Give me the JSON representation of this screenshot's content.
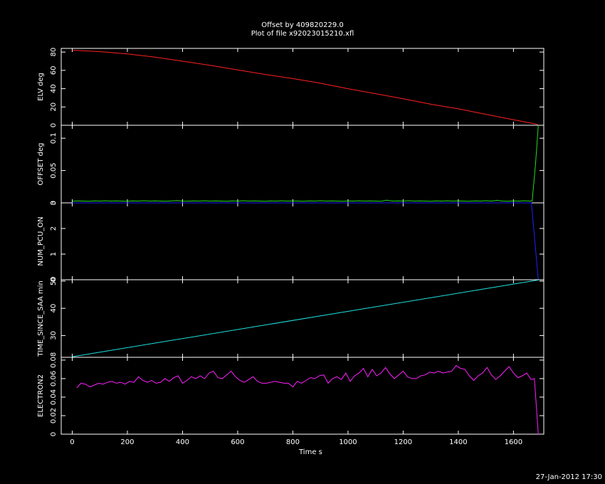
{
  "title": "Offset by 409820229.0",
  "subtitle": "Plot of file x92023015210.xfl",
  "footer_timestamp": "27-Jan-2012 17:30",
  "colors": {
    "background": "#000000",
    "frame": "#ffffff",
    "elv": "#ff2020",
    "offset": "#20e020",
    "num_pcu_on": "#2020ff",
    "time_since_saa": "#20e0e0",
    "electron2": "#ff20ff"
  },
  "chart_data": {
    "type": "line",
    "x_axis": {
      "label": "Time  s",
      "range": [
        -40,
        1710
      ],
      "ticks": [
        0,
        200,
        400,
        600,
        800,
        1000,
        1200,
        1400,
        1600
      ],
      "tick_labels": [
        "0",
        "200",
        "400",
        "600",
        "800",
        "1000",
        "1200",
        "1400",
        "1600"
      ]
    },
    "panels": [
      {
        "id": "elv",
        "ylabel": "ELV  deg",
        "ylim": [
          0,
          84
        ],
        "ticks": [
          0,
          20,
          40,
          60,
          80
        ],
        "tick_labels": [
          "0",
          "20",
          "40",
          "60",
          "80"
        ],
        "series": {
          "x": [
            0,
            100,
            200,
            300,
            400,
            500,
            600,
            700,
            800,
            900,
            1000,
            1100,
            1200,
            1300,
            1400,
            1500,
            1600,
            1680,
            1690
          ],
          "y": [
            82,
            80.5,
            78,
            74.5,
            70,
            65.5,
            60.5,
            55.5,
            51,
            46,
            40,
            34.5,
            29,
            23,
            18,
            12,
            6,
            1.5,
            0
          ]
        }
      },
      {
        "id": "offset",
        "ylabel": "OFFSET  deg",
        "ylim": [
          0,
          0.12
        ],
        "ticks": [
          0,
          0.05,
          0.1
        ],
        "tick_labels": [
          "0",
          "0.05",
          "0.1"
        ],
        "series": {
          "x": [
            0,
            20,
            40,
            60,
            80,
            100,
            120,
            140,
            160,
            180,
            200,
            220,
            240,
            260,
            280,
            300,
            320,
            340,
            360,
            380,
            400,
            420,
            440,
            460,
            480,
            500,
            520,
            540,
            560,
            580,
            600,
            620,
            640,
            660,
            680,
            700,
            720,
            740,
            760,
            780,
            800,
            820,
            840,
            860,
            880,
            900,
            920,
            940,
            960,
            980,
            1000,
            1020,
            1040,
            1060,
            1080,
            1100,
            1120,
            1140,
            1160,
            1180,
            1200,
            1220,
            1240,
            1260,
            1280,
            1300,
            1320,
            1340,
            1360,
            1380,
            1400,
            1420,
            1440,
            1460,
            1480,
            1500,
            1520,
            1540,
            1560,
            1580,
            1600,
            1620,
            1640,
            1660,
            1668,
            1680,
            1690
          ],
          "y": [
            0.0025,
            0.003,
            0.0028,
            0.0025,
            0.003,
            0.0028,
            0.0032,
            0.0027,
            0.003,
            0.0028,
            0.0025,
            0.003,
            0.0028,
            0.0033,
            0.0027,
            0.003,
            0.0028,
            0.0025,
            0.003,
            0.0035,
            0.0028,
            0.0026,
            0.003,
            0.0028,
            0.0032,
            0.0027,
            0.003,
            0.0028,
            0.0025,
            0.003,
            0.0028,
            0.0033,
            0.0027,
            0.003,
            0.0028,
            0.0025,
            0.003,
            0.0028,
            0.0032,
            0.0027,
            0.003,
            0.0028,
            0.0025,
            0.003,
            0.0028,
            0.0033,
            0.0027,
            0.003,
            0.0028,
            0.0025,
            0.003,
            0.0028,
            0.0032,
            0.0027,
            0.003,
            0.0028,
            0.0025,
            0.0042,
            0.0028,
            0.003,
            0.0028,
            0.0033,
            0.0027,
            0.003,
            0.0028,
            0.0025,
            0.003,
            0.0028,
            0.0032,
            0.0027,
            0.003,
            0.0028,
            0.0025,
            0.003,
            0.0028,
            0.0033,
            0.0027,
            0.0038,
            0.0028,
            0.0025,
            0.003,
            0.0028,
            0.0032,
            0.0027,
            0.003,
            0.06,
            0.12
          ]
        }
      },
      {
        "id": "num_pcu_on",
        "ylabel": "NUM_PCU_ON",
        "ylim": [
          0,
          3
        ],
        "ticks": [
          0,
          1,
          2,
          3
        ],
        "tick_labels": [
          "0",
          "1",
          "2",
          "3"
        ],
        "series": {
          "x": [
            0,
            1665,
            1690
          ],
          "y": [
            3,
            3,
            0
          ]
        }
      },
      {
        "id": "time_since_saa",
        "ylabel": "TIME_SINCE_SAA  min",
        "ylim": [
          22,
          50.5
        ],
        "ticks": [
          30,
          40,
          50
        ],
        "tick_labels": [
          "30",
          "40",
          "50"
        ],
        "series": {
          "x": [
            0,
            1690
          ],
          "y": [
            22.2,
            50.4
          ]
        }
      },
      {
        "id": "electron2",
        "ylabel": "ELECTRON2",
        "ylim": [
          0,
          0.083
        ],
        "ticks": [
          0,
          0.02,
          0.04,
          0.06,
          0.08
        ],
        "tick_labels": [
          "0",
          "0.02",
          "0.04",
          "0.06",
          "0.08"
        ],
        "series": {
          "x": [
            16,
            32,
            48,
            64,
            80,
            96,
            112,
            128,
            144,
            160,
            176,
            192,
            208,
            224,
            240,
            256,
            272,
            288,
            304,
            320,
            336,
            352,
            368,
            384,
            400,
            416,
            432,
            448,
            464,
            480,
            496,
            512,
            528,
            544,
            560,
            576,
            592,
            608,
            624,
            640,
            656,
            672,
            688,
            704,
            720,
            736,
            752,
            768,
            784,
            800,
            816,
            832,
            848,
            864,
            880,
            896,
            912,
            928,
            944,
            960,
            976,
            992,
            1008,
            1024,
            1040,
            1056,
            1072,
            1088,
            1104,
            1120,
            1136,
            1152,
            1168,
            1184,
            1200,
            1216,
            1232,
            1248,
            1264,
            1280,
            1296,
            1312,
            1328,
            1344,
            1360,
            1376,
            1392,
            1408,
            1424,
            1440,
            1456,
            1472,
            1488,
            1504,
            1520,
            1536,
            1552,
            1568,
            1584,
            1600,
            1616,
            1632,
            1648,
            1664,
            1676,
            1690
          ],
          "y": [
            0.05,
            0.055,
            0.054,
            0.051,
            0.053,
            0.055,
            0.054,
            0.056,
            0.057,
            0.055,
            0.056,
            0.054,
            0.057,
            0.056,
            0.062,
            0.058,
            0.056,
            0.058,
            0.055,
            0.056,
            0.06,
            0.057,
            0.061,
            0.063,
            0.055,
            0.058,
            0.062,
            0.06,
            0.063,
            0.06,
            0.066,
            0.068,
            0.061,
            0.06,
            0.064,
            0.068,
            0.062,
            0.058,
            0.056,
            0.059,
            0.062,
            0.057,
            0.055,
            0.055,
            0.056,
            0.057,
            0.056,
            0.055,
            0.055,
            0.051,
            0.057,
            0.055,
            0.058,
            0.061,
            0.06,
            0.063,
            0.064,
            0.055,
            0.06,
            0.062,
            0.059,
            0.066,
            0.057,
            0.063,
            0.066,
            0.071,
            0.062,
            0.07,
            0.063,
            0.066,
            0.072,
            0.065,
            0.06,
            0.064,
            0.068,
            0.062,
            0.06,
            0.06,
            0.063,
            0.064,
            0.067,
            0.066,
            0.068,
            0.066,
            0.067,
            0.068,
            0.074,
            0.071,
            0.07,
            0.063,
            0.058,
            0.063,
            0.066,
            0.072,
            0.064,
            0.059,
            0.063,
            0.068,
            0.073,
            0.066,
            0.061,
            0.063,
            0.066,
            0.059,
            0.06,
            0.0
          ]
        }
      }
    ]
  }
}
